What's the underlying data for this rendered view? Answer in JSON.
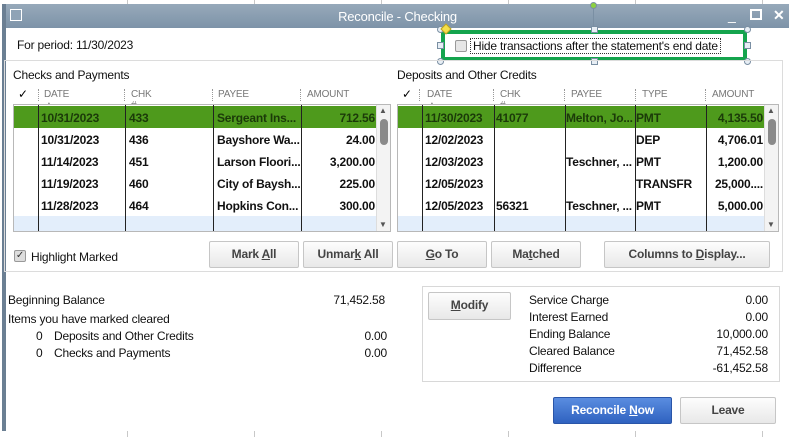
{
  "window": {
    "title": "Reconcile - Checking",
    "minimize_icon": "minimize-icon",
    "maximize_icon": "maximize-icon",
    "close_icon": "close-icon"
  },
  "period": "For period: 11/30/2023",
  "hide_transactions": {
    "label": "Hide transactions after the statement's end date",
    "checked": false
  },
  "checks": {
    "title": "Checks and Payments",
    "columns": [
      "✓",
      "DATE ▲",
      "CHK #",
      "PAYEE",
      "AMOUNT"
    ],
    "rows": [
      {
        "date": "10/31/2023",
        "chk": "433",
        "payee": "Sergeant Ins...",
        "amount": "712.56",
        "selected": true
      },
      {
        "date": "10/31/2023",
        "chk": "436",
        "payee": "Bayshore Wa...",
        "amount": "24.00"
      },
      {
        "date": "11/14/2023",
        "chk": "451",
        "payee": "Larson Floori...",
        "amount": "3,200.00"
      },
      {
        "date": "11/19/2023",
        "chk": "460",
        "payee": "City of Baysh...",
        "amount": "225.00"
      },
      {
        "date": "11/28/2023",
        "chk": "464",
        "payee": "Hopkins Con...",
        "amount": "300.00"
      }
    ]
  },
  "deposits": {
    "title": "Deposits and Other Credits",
    "columns": [
      "✓",
      "DATE ▲",
      "CHK #",
      "PAYEE",
      "TYPE",
      "AMOUNT"
    ],
    "rows": [
      {
        "date": "11/30/2023",
        "chk": "41077",
        "payee": "Melton, Jo...",
        "type": "PMT",
        "amount": "4,135.50",
        "selected": true
      },
      {
        "date": "12/02/2023",
        "chk": "",
        "payee": "",
        "type": "DEP",
        "amount": "4,706.01"
      },
      {
        "date": "12/03/2023",
        "chk": "",
        "payee": "Teschner, ...",
        "type": "PMT",
        "amount": "1,200.00"
      },
      {
        "date": "12/05/2023",
        "chk": "",
        "payee": "",
        "type": "TRANSFR",
        "amount": "25,000...."
      },
      {
        "date": "12/05/2023",
        "chk": "56321",
        "payee": "Teschner, ...",
        "type": "PMT",
        "amount": "5,000.00"
      }
    ]
  },
  "highlight_marked": {
    "label": "Highlight Marked",
    "checked": true
  },
  "buttons": {
    "mark_all": {
      "pre": "Mark ",
      "key": "A",
      "post": "ll"
    },
    "unmark_all": {
      "pre": "Unmar",
      "key": "k",
      "post": " All"
    },
    "go_to": {
      "pre": "",
      "key": "G",
      "post": "o To"
    },
    "matched": {
      "pre": "Ma",
      "key": "t",
      "post": "ched"
    },
    "columns": {
      "pre": "Columns to ",
      "key": "D",
      "post": "isplay..."
    },
    "modify": {
      "pre": "",
      "key": "M",
      "post": "odify"
    },
    "reconcile_now": {
      "pre": "Reconcile ",
      "key": "N",
      "post": "ow"
    },
    "leave": {
      "pre": "Leave",
      "key": "",
      "post": ""
    }
  },
  "summary": {
    "beginning_balance_label": "Beginning Balance",
    "beginning_balance": "71,452.58",
    "items_label": "Items you have marked cleared",
    "deposits_count": "0",
    "deposits_label": "Deposits and Other Credits",
    "deposits_amount": "0.00",
    "checks_count": "0",
    "checks_label": "Checks and Payments",
    "checks_amount": "0.00"
  },
  "totals": [
    {
      "label": "Service Charge",
      "value": "0.00"
    },
    {
      "label": "Interest Earned",
      "value": "0.00"
    },
    {
      "label": "Ending Balance",
      "value": "10,000.00"
    },
    {
      "label": "Cleared Balance",
      "value": "71,452.58"
    },
    {
      "label": "Difference",
      "value": "-61,452.58"
    }
  ],
  "colors": {
    "selected_row": "#4e9a1c",
    "primary_button": "#3a6fd0",
    "selection_outline": "#14a44d"
  }
}
